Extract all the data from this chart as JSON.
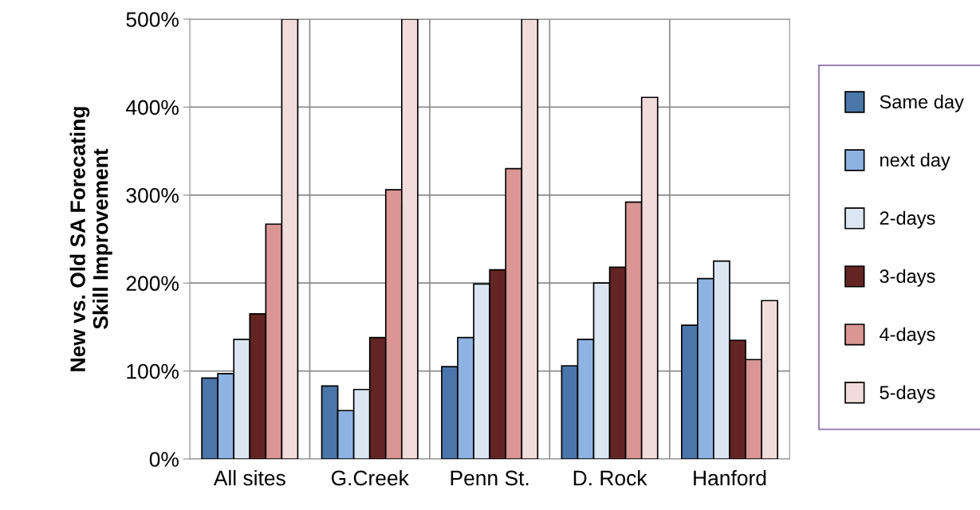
{
  "chart_data": {
    "type": "bar",
    "ylabel": "New vs. Old SA Forecating\nSkill Improvement",
    "categories": [
      "All sites",
      "G.Creek",
      "Penn St.",
      "D. Rock",
      "Hanford"
    ],
    "series": [
      {
        "name": "Same day",
        "color": "#4a76aa",
        "values": [
          92,
          83,
          105,
          106,
          152
        ]
      },
      {
        "name": "next day",
        "color": "#8db3e2",
        "values": [
          97,
          55,
          138,
          136,
          205
        ]
      },
      {
        "name": "2-days",
        "color": "#dce6f2",
        "values": [
          136,
          79,
          199,
          200,
          225
        ]
      },
      {
        "name": "3-days",
        "color": "#632523",
        "values": [
          165,
          138,
          215,
          218,
          135
        ]
      },
      {
        "name": "4-days",
        "color": "#d99694",
        "values": [
          267,
          306,
          330,
          292,
          113
        ]
      },
      {
        "name": "5-days",
        "color": "#f2dcdb",
        "values": [
          500,
          500,
          500,
          411,
          180
        ]
      }
    ],
    "ylim": [
      0,
      500
    ],
    "yticks": [
      {
        "value": 0,
        "label": "0%"
      },
      {
        "value": 100,
        "label": "100%"
      },
      {
        "value": 200,
        "label": "200%"
      },
      {
        "value": 300,
        "label": "300%"
      },
      {
        "value": 400,
        "label": "400%"
      },
      {
        "value": 500,
        "label": "500%"
      }
    ],
    "grid": "y",
    "legend": "right"
  }
}
